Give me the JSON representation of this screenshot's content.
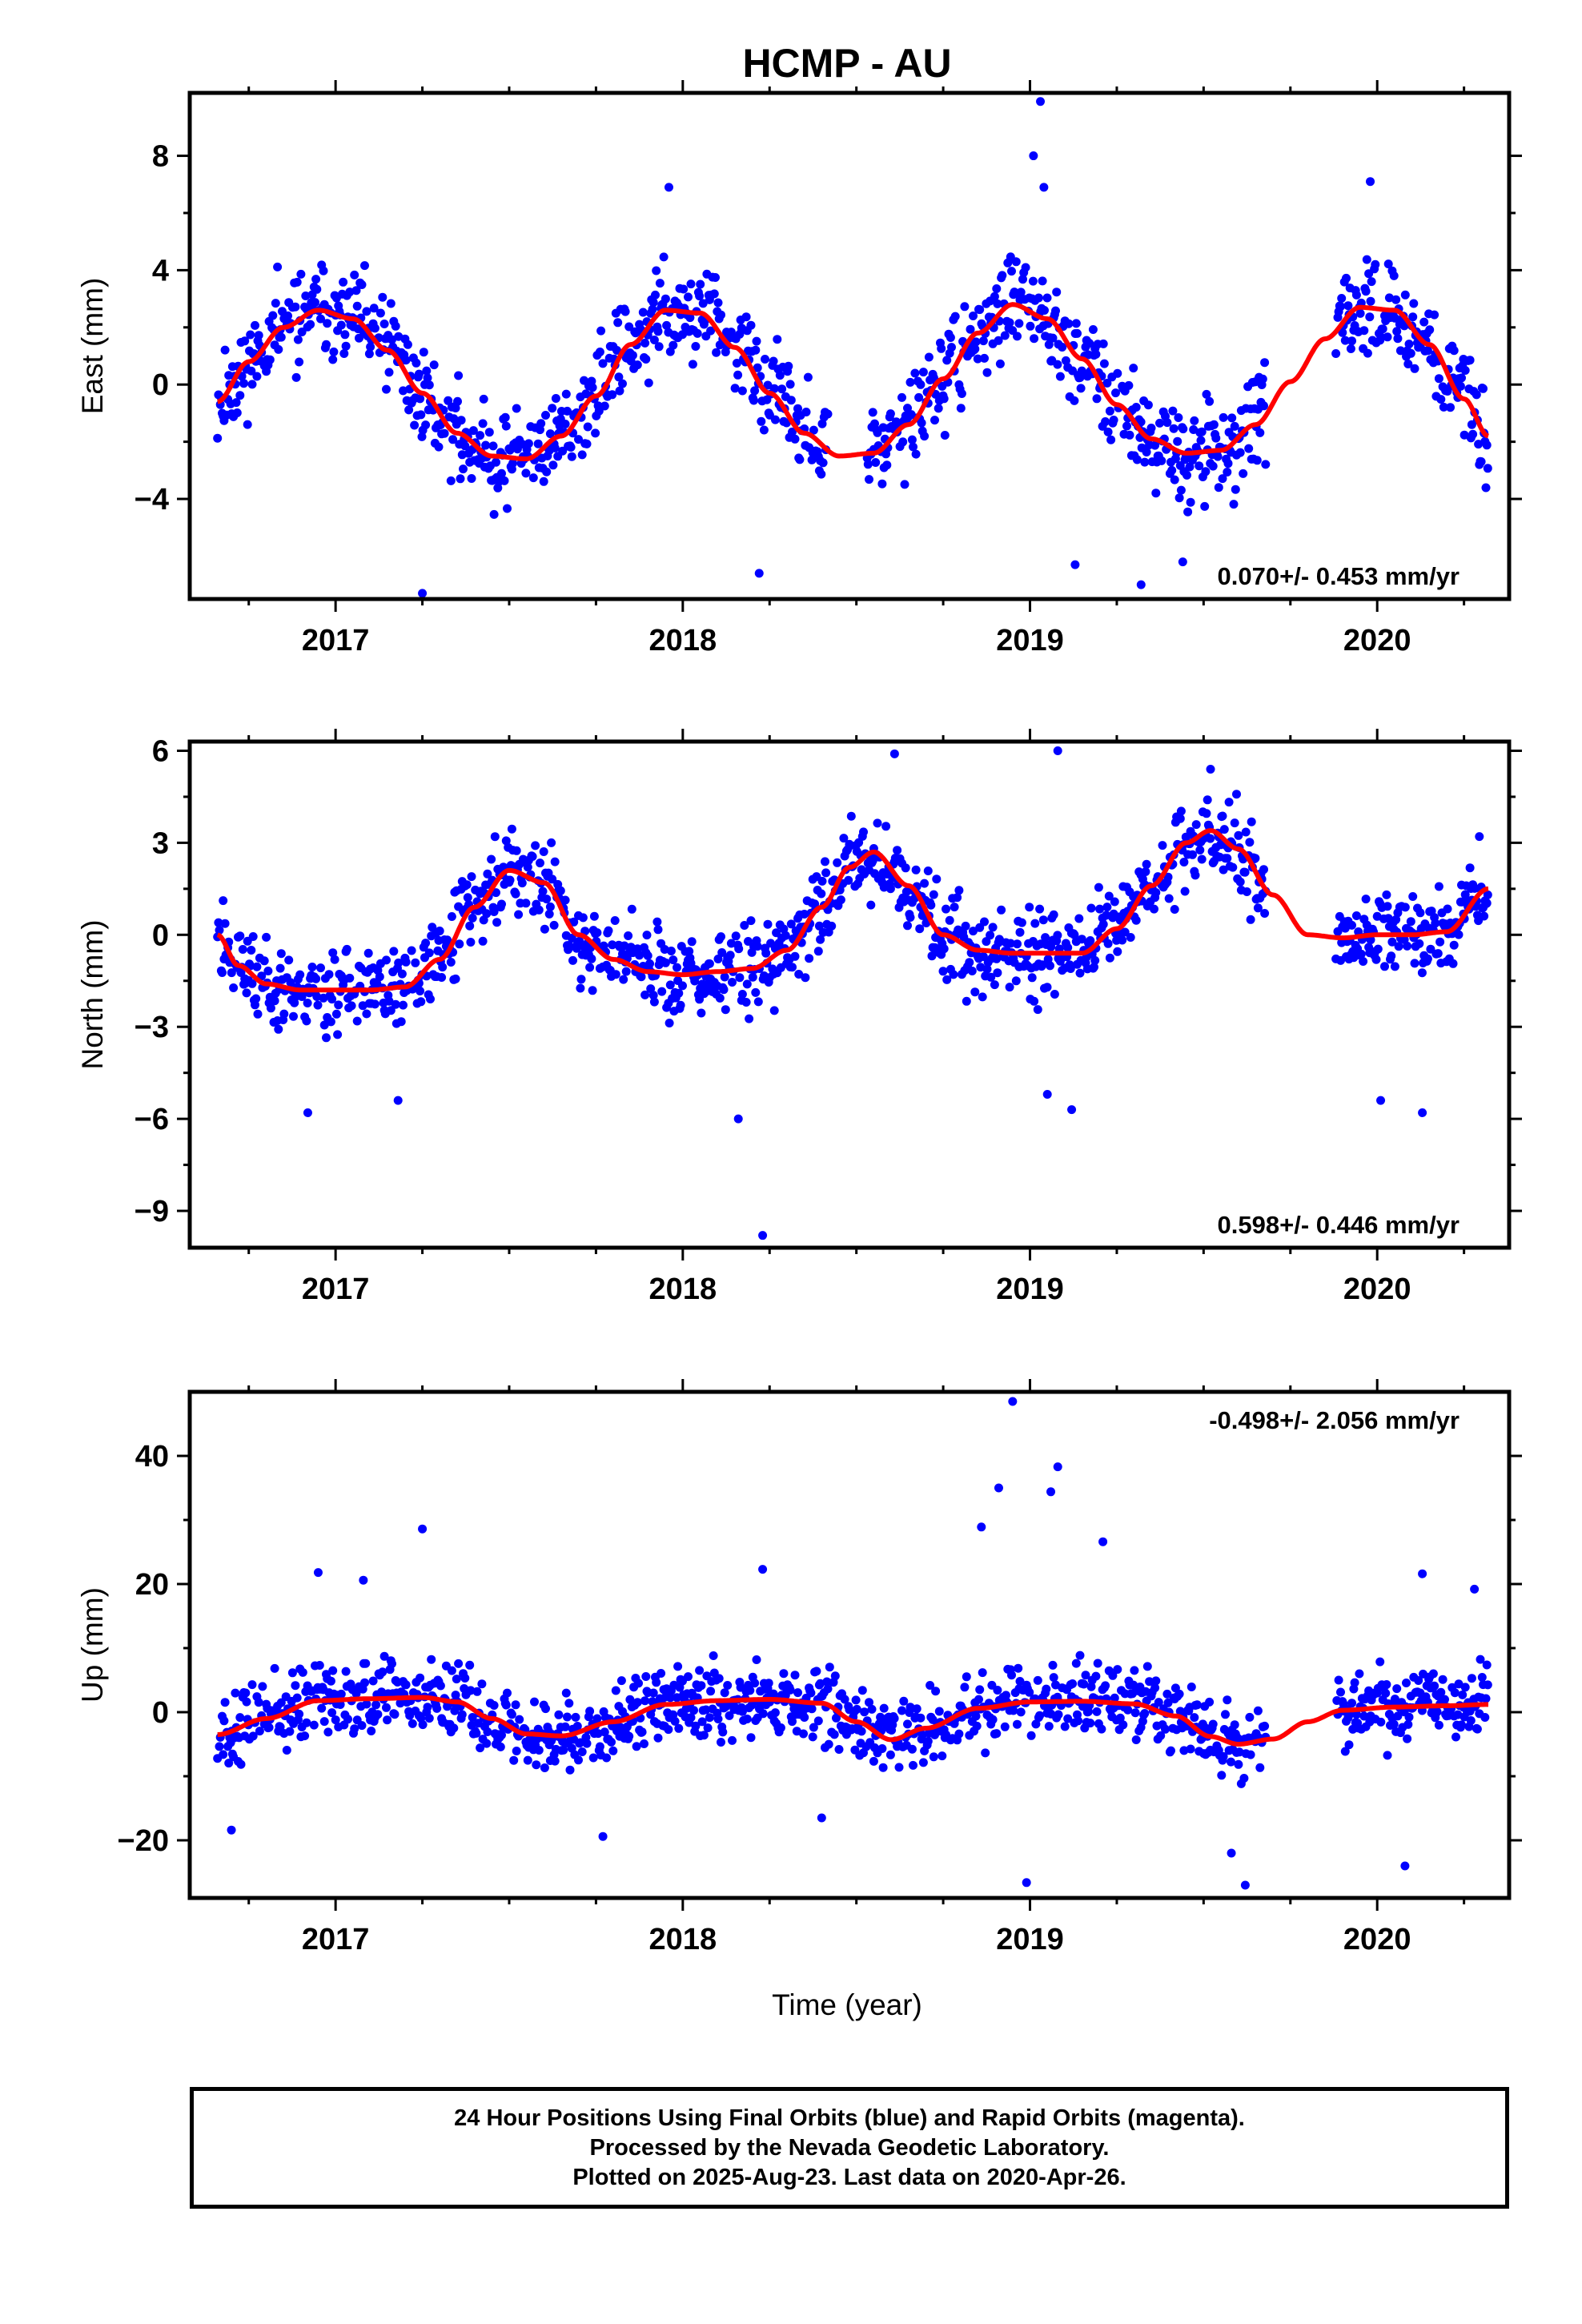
{
  "title": "HCMP - AU",
  "xlabel": "Time (year)",
  "footer": {
    "line1": "24 Hour Positions Using Final Orbits (blue) and Rapid Orbits (magenta).",
    "line2": "Processed by the Nevada Geodetic Laboratory.",
    "line3": "Plotted on 2025-Aug-23. Last data on 2020-Apr-26."
  },
  "colors": {
    "points": "#0000ff",
    "fit": "#ff0000",
    "frame": "#000000"
  },
  "chart_data": [
    {
      "type": "scatter",
      "ylabel": "East (mm)",
      "rate_text": "0.070+/- 0.453 mm/yr",
      "rate_position": "bottom-right",
      "xlim": [
        2016.58,
        2020.38
      ],
      "ylim": [
        -7.5,
        10.2
      ],
      "x_ticks": [
        2017,
        2018,
        2019,
        2020
      ],
      "x_tick_labels": [
        "2017",
        "2018",
        "2019",
        "2020"
      ],
      "y_ticks": [
        -4,
        0,
        4,
        8
      ],
      "y_tick_labels": [
        "−4",
        "0",
        "4",
        "8"
      ],
      "fit": {
        "name": "seasonal model",
        "x": [
          2016.66,
          2016.75,
          2016.85,
          2016.95,
          2017.05,
          2017.15,
          2017.25,
          2017.35,
          2017.45,
          2017.55,
          2017.65,
          2017.75,
          2017.85,
          2017.95,
          2018.05,
          2018.15,
          2018.25,
          2018.35,
          2018.45,
          2018.55,
          2018.65,
          2018.75,
          2018.85,
          2018.95,
          2019.05,
          2019.15,
          2019.25,
          2019.35,
          2019.45,
          2019.55,
          2019.65,
          2019.75,
          2019.85,
          2019.95,
          2020.05,
          2020.15,
          2020.25,
          2020.32
        ],
        "y": [
          -0.6,
          0.8,
          2.0,
          2.6,
          2.3,
          1.2,
          -0.3,
          -1.7,
          -2.5,
          -2.6,
          -1.8,
          -0.4,
          1.4,
          2.6,
          2.5,
          1.3,
          -0.3,
          -1.7,
          -2.5,
          -2.4,
          -1.4,
          0.2,
          1.8,
          2.8,
          2.3,
          0.9,
          -0.7,
          -1.9,
          -2.4,
          -2.3,
          -1.4,
          0.1,
          1.6,
          2.7,
          2.6,
          1.4,
          -0.5,
          -1.8
        ]
      },
      "noise": 1.6,
      "seed": 11,
      "gaps": [
        [
          2018.42,
          2018.53
        ],
        [
          2019.68,
          2019.88
        ]
      ],
      "outliers": [
        [
          2019.03,
          9.9
        ],
        [
          2019.01,
          8.0
        ],
        [
          2017.25,
          -7.3
        ],
        [
          2018.22,
          -6.6
        ],
        [
          2019.13,
          -6.3
        ],
        [
          2019.32,
          -7.0
        ],
        [
          2019.44,
          -6.2
        ],
        [
          2017.96,
          6.9
        ],
        [
          2019.04,
          6.9
        ],
        [
          2019.98,
          7.1
        ]
      ]
    },
    {
      "type": "scatter",
      "ylabel": "North (mm)",
      "rate_text": "0.598+/- 0.446 mm/yr",
      "rate_position": "bottom-right",
      "xlim": [
        2016.58,
        2020.38
      ],
      "ylim": [
        -10.2,
        6.3
      ],
      "x_ticks": [
        2017,
        2018,
        2019,
        2020
      ],
      "x_tick_labels": [
        "2017",
        "2018",
        "2019",
        "2020"
      ],
      "y_ticks": [
        -9,
        -6,
        -3,
        0,
        3,
        6
      ],
      "y_tick_labels": [
        "−9",
        "−6",
        "−3",
        "0",
        "3",
        "6"
      ],
      "fit": {
        "name": "seasonal model",
        "x": [
          2016.66,
          2016.72,
          2016.8,
          2016.9,
          2017.0,
          2017.1,
          2017.2,
          2017.3,
          2017.4,
          2017.5,
          2017.6,
          2017.7,
          2017.8,
          2017.9,
          2018.0,
          2018.1,
          2018.2,
          2018.3,
          2018.4,
          2018.48,
          2018.55,
          2018.65,
          2018.75,
          2018.85,
          2018.95,
          2019.05,
          2019.15,
          2019.25,
          2019.35,
          2019.45,
          2019.52,
          2019.6,
          2019.7,
          2019.8,
          2019.9,
          2020.0,
          2020.1,
          2020.2,
          2020.32
        ],
        "y": [
          0.0,
          -1.0,
          -1.6,
          -1.8,
          -1.8,
          -1.8,
          -1.7,
          -0.8,
          0.9,
          2.1,
          1.7,
          0.0,
          -0.8,
          -1.2,
          -1.3,
          -1.2,
          -1.1,
          -0.5,
          0.9,
          2.2,
          2.7,
          1.6,
          0.0,
          -0.5,
          -0.6,
          -0.6,
          -0.6,
          0.2,
          1.6,
          3.0,
          3.4,
          2.8,
          1.3,
          0.0,
          -0.1,
          0.0,
          0.0,
          0.1,
          1.5
        ]
      },
      "noise": 1.4,
      "seed": 23,
      "gaps": [
        [
          2019.68,
          2019.88
        ]
      ],
      "outliers": [
        [
          2018.23,
          -9.8
        ],
        [
          2018.16,
          -6.0
        ],
        [
          2016.92,
          -5.8
        ],
        [
          2017.18,
          -5.4
        ],
        [
          2019.12,
          -5.7
        ],
        [
          2019.05,
          -5.2
        ],
        [
          2020.01,
          -5.4
        ],
        [
          2020.13,
          -5.8
        ],
        [
          2019.08,
          6.0
        ],
        [
          2018.61,
          5.9
        ],
        [
          2019.52,
          5.4
        ]
      ]
    },
    {
      "type": "scatter",
      "ylabel": "Up (mm)",
      "rate_text": "-0.498+/- 2.056 mm/yr",
      "rate_position": "top-right",
      "xlim": [
        2016.58,
        2020.38
      ],
      "ylim": [
        -29,
        50
      ],
      "x_ticks": [
        2017,
        2018,
        2019,
        2020
      ],
      "x_tick_labels": [
        "2017",
        "2018",
        "2019",
        "2020"
      ],
      "y_ticks": [
        -20,
        0,
        20,
        40
      ],
      "y_tick_labels": [
        "−20",
        "0",
        "20",
        "40"
      ],
      "fit": {
        "name": "seasonal model",
        "x": [
          2016.66,
          2016.8,
          2016.95,
          2017.1,
          2017.25,
          2017.35,
          2017.45,
          2017.55,
          2017.65,
          2017.8,
          2017.95,
          2018.1,
          2018.25,
          2018.4,
          2018.5,
          2018.6,
          2018.7,
          2018.85,
          2019.0,
          2019.15,
          2019.3,
          2019.42,
          2019.52,
          2019.6,
          2019.7,
          2019.8,
          2019.9,
          2020.05,
          2020.2,
          2020.32
        ],
        "y": [
          -3.5,
          -1.0,
          1.8,
          2.1,
          2.3,
          1.6,
          -1.0,
          -3.4,
          -3.7,
          -1.5,
          1.2,
          1.8,
          2.0,
          1.4,
          -1.5,
          -4.3,
          -2.5,
          0.6,
          1.6,
          1.7,
          1.3,
          -0.6,
          -3.8,
          -5.0,
          -4.2,
          -1.5,
          0.3,
          0.8,
          1.0,
          1.2
        ]
      },
      "noise": 5.5,
      "seed": 37,
      "gaps": [
        [
          2019.68,
          2019.88
        ]
      ],
      "outliers": [
        [
          2018.95,
          48.5
        ],
        [
          2018.91,
          35.0
        ],
        [
          2019.08,
          38.3
        ],
        [
          2019.06,
          34.4
        ],
        [
          2018.86,
          28.9
        ],
        [
          2017.25,
          28.6
        ],
        [
          2019.21,
          26.6
        ],
        [
          2016.95,
          21.8
        ],
        [
          2017.08,
          20.6
        ],
        [
          2018.23,
          22.3
        ],
        [
          2020.13,
          21.6
        ],
        [
          2020.28,
          19.2
        ],
        [
          2019.62,
          -27.0
        ],
        [
          2018.99,
          -26.6
        ],
        [
          2020.08,
          -24.0
        ],
        [
          2016.7,
          -18.4
        ],
        [
          2017.77,
          -19.4
        ],
        [
          2019.58,
          -22.0
        ],
        [
          2018.4,
          -16.5
        ]
      ]
    }
  ]
}
